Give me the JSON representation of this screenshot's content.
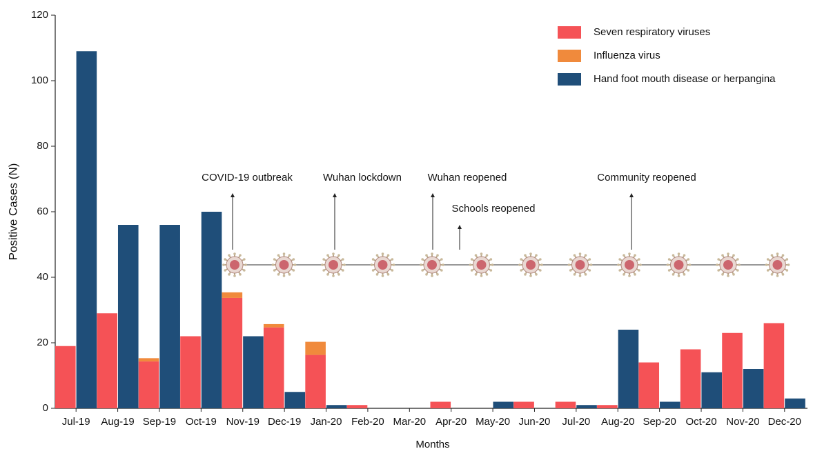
{
  "chart_data": {
    "type": "bar",
    "x_label": "Months",
    "y_label": "Positive Cases (N)",
    "categories": [
      "Jul-19",
      "Aug-19",
      "Sep-19",
      "Oct-19",
      "Nov-19",
      "Dec-19",
      "Jan-20",
      "Feb-20",
      "Mar-20",
      "Apr-20",
      "May-20",
      "Jun-20",
      "Jul-20",
      "Aug-20",
      "Sep-20",
      "Oct-20",
      "Nov-20",
      "Dec-20"
    ],
    "series": [
      {
        "name": "Seven respiratory viruses",
        "color": "#f55256",
        "stack": "a",
        "values": [
          19,
          29,
          14.3,
          22,
          33.7,
          24.7,
          16.3,
          1,
          0,
          2,
          0,
          2,
          2,
          1,
          14,
          18,
          23,
          26
        ]
      },
      {
        "name": "Influenza virus",
        "color": "#f08a3c",
        "stack": "a",
        "values": [
          0,
          0,
          1,
          0,
          1.7,
          1,
          4,
          0,
          0,
          0,
          0,
          0,
          0,
          0,
          0,
          0,
          0,
          0
        ]
      },
      {
        "name": "Hand foot mouth disease or herpangina",
        "color": "#1f4e79",
        "stack": "b",
        "values": [
          109,
          56,
          56,
          60,
          22,
          5,
          1,
          0,
          0,
          0,
          2,
          0,
          1,
          24,
          2,
          11,
          12,
          3
        ]
      }
    ],
    "ylim": [
      0,
      120
    ],
    "yticks": [
      0,
      20,
      40,
      60,
      80,
      100,
      120
    ],
    "legend": "upper right",
    "annotations": [
      "COVID-19 outbreak",
      "Wuhan lockdown",
      "Wuhan reopened",
      "Schools reopened",
      "Community reopened"
    ]
  }
}
